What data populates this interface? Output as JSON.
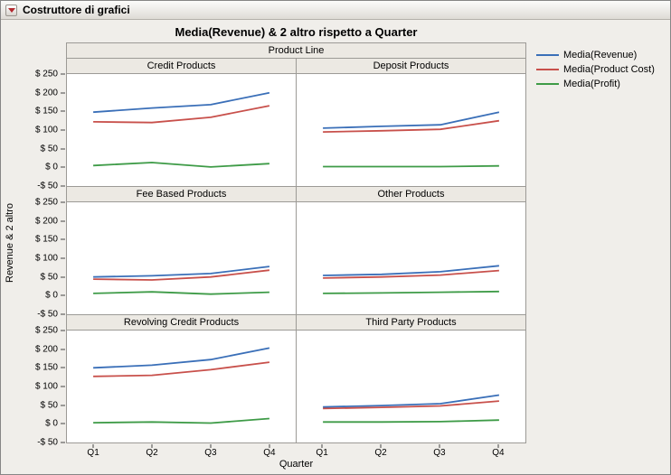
{
  "window": {
    "title": "Costruttore di grafici"
  },
  "chart": {
    "title": "Media(Revenue) & 2 altro rispetto a Quarter",
    "column_group_label": "Product Line",
    "ylabel": "Revenue & 2 altro",
    "xlabel": "Quarter",
    "y_tick_labels": [
      "$ 250",
      "$ 200",
      "$ 150",
      "$ 100",
      "$ 50",
      "$ 0",
      "-$ 50"
    ]
  },
  "chart_data": {
    "type": "line",
    "x": [
      "Q1",
      "Q2",
      "Q3",
      "Q4"
    ],
    "ylim": [
      -50,
      250
    ],
    "ytick_values": [
      250,
      200,
      150,
      100,
      50,
      0,
      -50
    ],
    "grid": false,
    "legend_position": "right",
    "series": [
      {
        "name": "Media(Revenue)",
        "color": "#3A6FB8"
      },
      {
        "name": "Media(Product Cost)",
        "color": "#C8504B"
      },
      {
        "name": "Media(Profit)",
        "color": "#3E9B47"
      }
    ],
    "panels": [
      {
        "label": "Credit Products",
        "values": [
          [
            148,
            159,
            168,
            200
          ],
          [
            122,
            120,
            134,
            165
          ],
          [
            5,
            13,
            1,
            10
          ]
        ]
      },
      {
        "label": "Deposit Products",
        "values": [
          [
            105,
            110,
            114,
            148
          ],
          [
            95,
            98,
            102,
            125
          ],
          [
            2,
            2,
            2,
            4
          ]
        ]
      },
      {
        "label": "Fee Based Products",
        "values": [
          [
            50,
            53,
            59,
            78
          ],
          [
            44,
            42,
            50,
            68
          ],
          [
            6,
            10,
            4,
            9
          ]
        ]
      },
      {
        "label": "Other Products",
        "values": [
          [
            54,
            57,
            64,
            80
          ],
          [
            47,
            50,
            55,
            67
          ],
          [
            6,
            7,
            9,
            11
          ]
        ]
      },
      {
        "label": "Revolving Credit Products",
        "values": [
          [
            150,
            157,
            172,
            203
          ],
          [
            127,
            130,
            145,
            165
          ],
          [
            3,
            5,
            2,
            14
          ]
        ]
      },
      {
        "label": "Third Party Products",
        "values": [
          [
            45,
            49,
            54,
            77
          ],
          [
            41,
            44,
            48,
            61
          ],
          [
            5,
            5,
            6,
            10
          ]
        ]
      }
    ]
  }
}
